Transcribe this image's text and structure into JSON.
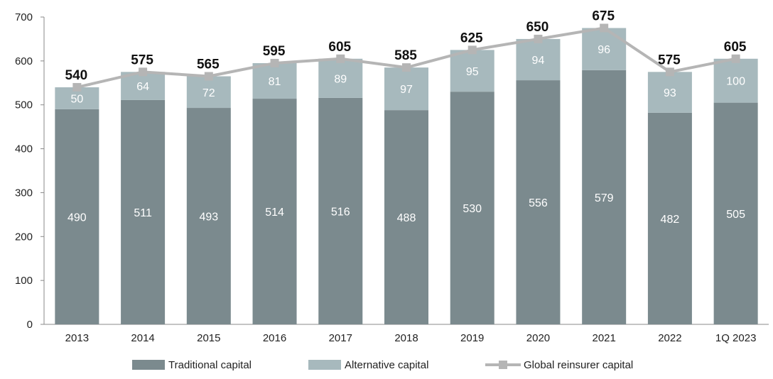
{
  "chart_data": {
    "type": "bar",
    "stacked": true,
    "categories": [
      "2013",
      "2014",
      "2015",
      "2016",
      "2017",
      "2018",
      "2019",
      "2020",
      "2021",
      "2022",
      "1Q 2023"
    ],
    "series": [
      {
        "name": "Traditional capital",
        "kind": "bar",
        "color": "#7b8a8e",
        "values": [
          490,
          511,
          493,
          514,
          516,
          488,
          530,
          556,
          579,
          482,
          505
        ]
      },
      {
        "name": "Alternative capital",
        "kind": "bar",
        "color": "#a7b9bd",
        "values": [
          50,
          64,
          72,
          81,
          89,
          97,
          95,
          94,
          96,
          93,
          100
        ]
      },
      {
        "name": "Global reinsurer capital",
        "kind": "line",
        "color": "#b5b5b5",
        "values": [
          540,
          575,
          565,
          595,
          605,
          585,
          625,
          650,
          675,
          575,
          605
        ]
      }
    ],
    "ylim": [
      0,
      700
    ],
    "yticks": [
      0,
      100,
      200,
      300,
      400,
      500,
      600,
      700
    ],
    "grid": false,
    "legend_position": "bottom"
  }
}
